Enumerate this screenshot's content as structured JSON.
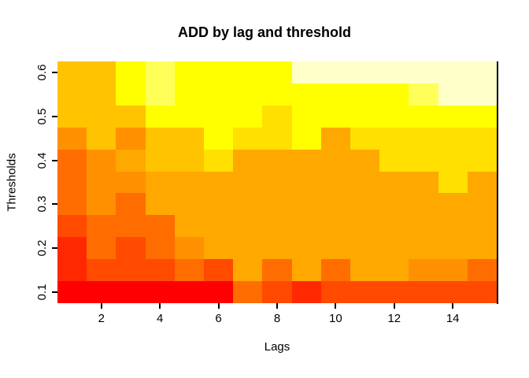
{
  "title": "ADD by lag and threshold",
  "x_axis": {
    "label": "Lags",
    "tick_labels": [
      "2",
      "4",
      "6",
      "8",
      "10",
      "12",
      "14"
    ]
  },
  "y_axis": {
    "label": "Thresholds",
    "tick_labels": [
      "0.1",
      "0.2",
      "0.3",
      "0.4",
      "0.5",
      "0.6"
    ]
  },
  "chart_data": {
    "type": "heatmap",
    "title": "ADD by lag and threshold",
    "xlabel": "Lags",
    "ylabel": "Thresholds",
    "x_values": [
      1,
      2,
      3,
      4,
      5,
      6,
      7,
      8,
      9,
      10,
      11,
      12,
      13,
      14,
      15
    ],
    "x_ticks_shown": [
      2,
      4,
      6,
      8,
      10,
      12,
      14
    ],
    "y_values_top_to_bottom": [
      0.6,
      0.55,
      0.5,
      0.45,
      0.4,
      0.35,
      0.3,
      0.25,
      0.2,
      0.15,
      0.1
    ],
    "y_ticks_shown": [
      0.1,
      0.2,
      0.3,
      0.4,
      0.5,
      0.6
    ],
    "legend": "none",
    "grid_lines": "off",
    "palette_note": "R heat.colors-style ramp, low ADD = red, high ADD = white",
    "palette": {
      "RD": "#FF0000",
      "R2": "#FF2800",
      "R3": "#FF4A00",
      "O1": "#FF6D00",
      "O2": "#FF9100",
      "O3": "#FFA800",
      "O4": "#FFC300",
      "GD": "#FFE000",
      "YL": "#FFFF00",
      "Y2": "#FFFF5A",
      "IV": "#FFFFC9"
    },
    "rows_top_to_bottom": [
      {
        "threshold": 0.6,
        "cells": [
          "O4",
          "O4",
          "YL",
          "Y2",
          "YL",
          "YL",
          "YL",
          "YL",
          "IV",
          "IV",
          "IV",
          "IV",
          "IV",
          "IV",
          "IV"
        ]
      },
      {
        "threshold": 0.55,
        "cells": [
          "O4",
          "O4",
          "YL",
          "Y2",
          "YL",
          "YL",
          "YL",
          "YL",
          "YL",
          "YL",
          "YL",
          "YL",
          "Y2",
          "IV",
          "IV"
        ]
      },
      {
        "threshold": 0.5,
        "cells": [
          "O4",
          "O4",
          "O4",
          "YL",
          "YL",
          "YL",
          "YL",
          "GD",
          "YL",
          "YL",
          "YL",
          "YL",
          "YL",
          "YL",
          "YL"
        ]
      },
      {
        "threshold": 0.45,
        "cells": [
          "O2",
          "O4",
          "O2",
          "O4",
          "O4",
          "YL",
          "GD",
          "GD",
          "YL",
          "O3",
          "GD",
          "GD",
          "GD",
          "GD",
          "GD"
        ]
      },
      {
        "threshold": 0.4,
        "cells": [
          "O1",
          "O2",
          "O3",
          "O4",
          "O4",
          "GD",
          "O3",
          "O3",
          "O3",
          "O3",
          "O3",
          "GD",
          "GD",
          "GD",
          "GD"
        ]
      },
      {
        "threshold": 0.35,
        "cells": [
          "O1",
          "O2",
          "O2",
          "O3",
          "O3",
          "O3",
          "O3",
          "O3",
          "O3",
          "O3",
          "O3",
          "O3",
          "O3",
          "GD",
          "O3"
        ]
      },
      {
        "threshold": 0.3,
        "cells": [
          "O1",
          "O2",
          "O1",
          "O3",
          "O3",
          "O3",
          "O3",
          "O3",
          "O3",
          "O3",
          "O3",
          "O3",
          "O3",
          "O3",
          "O3"
        ]
      },
      {
        "threshold": 0.25,
        "cells": [
          "R3",
          "O1",
          "O1",
          "O1",
          "O3",
          "O3",
          "O3",
          "O3",
          "O3",
          "O3",
          "O3",
          "O3",
          "O3",
          "O3",
          "O3"
        ]
      },
      {
        "threshold": 0.2,
        "cells": [
          "R2",
          "O1",
          "R3",
          "O1",
          "O2",
          "O3",
          "O3",
          "O3",
          "O3",
          "O3",
          "O3",
          "O3",
          "O3",
          "O3",
          "O3"
        ]
      },
      {
        "threshold": 0.15,
        "cells": [
          "R2",
          "R3",
          "R3",
          "R3",
          "O1",
          "R3",
          "O3",
          "O1",
          "O3",
          "O1",
          "O3",
          "O3",
          "O2",
          "O2",
          "O1"
        ]
      },
      {
        "threshold": 0.1,
        "cells": [
          "RD",
          "RD",
          "RD",
          "RD",
          "RD",
          "RD",
          "O1",
          "R3",
          "R2",
          "R3",
          "R3",
          "R3",
          "R3",
          "R3",
          "R3"
        ]
      }
    ]
  }
}
